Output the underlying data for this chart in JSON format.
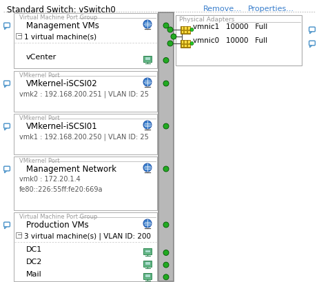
{
  "title": "Standard Switch: vSwitch0",
  "remove_text": "Remove...",
  "properties_text": "Properties...",
  "bg_color": "#ffffff",
  "link_color": "#3a7fcc",
  "border_color": "#a0a0a0",
  "switch_bar_color": "#b8b8b8",
  "switch_bar_border": "#888888",
  "green_dot_color": "#22aa22",
  "label_color": "#999999",
  "text_color": "#000000",
  "gray_text_color": "#555555",
  "chat_color": "#5599cc",
  "sections": [
    {
      "type": "vm_port_group",
      "label": "Virtual Machine Port Group",
      "name": "Management VMs",
      "sub": "1 virtual machine(s)",
      "items": [
        "vCenter"
      ],
      "item_icon": "vm"
    },
    {
      "type": "vmkernel",
      "label": "VMkernel Port",
      "name": "VMkernel-iSCSI02",
      "sub": "vmk2 : 192.168.200.251 | VLAN ID: 25",
      "items": [],
      "item_icon": null
    },
    {
      "type": "vmkernel",
      "label": "VMkernel Port",
      "name": "VMkernel-iSCSI01",
      "sub": "vmk1 : 192.168.200.250 | VLAN ID: 25",
      "items": [],
      "item_icon": null
    },
    {
      "type": "vmkernel",
      "label": "VMkernel Port",
      "name": "Management Network",
      "sub": "vmk0 : 172.20.1.4",
      "sub2": "fe80::226:55ff:fe20:669a",
      "items": [],
      "item_icon": null
    },
    {
      "type": "vm_port_group",
      "label": "Virtual Machine Port Group",
      "name": "Production VMs",
      "sub": "3 virtual machine(s) | VLAN ID: 200",
      "items": [
        "DC1",
        "DC2",
        "Mail"
      ],
      "item_icon": "vm"
    }
  ],
  "physical_adapters": {
    "label": "Physical Adapters",
    "adapters": [
      {
        "name": "vmnic1",
        "speed": "10000",
        "duplex": "Full"
      },
      {
        "name": "vmnic0",
        "speed": "10000",
        "duplex": "Full"
      }
    ]
  },
  "figsize": [
    4.63,
    4.09
  ],
  "dpi": 100
}
